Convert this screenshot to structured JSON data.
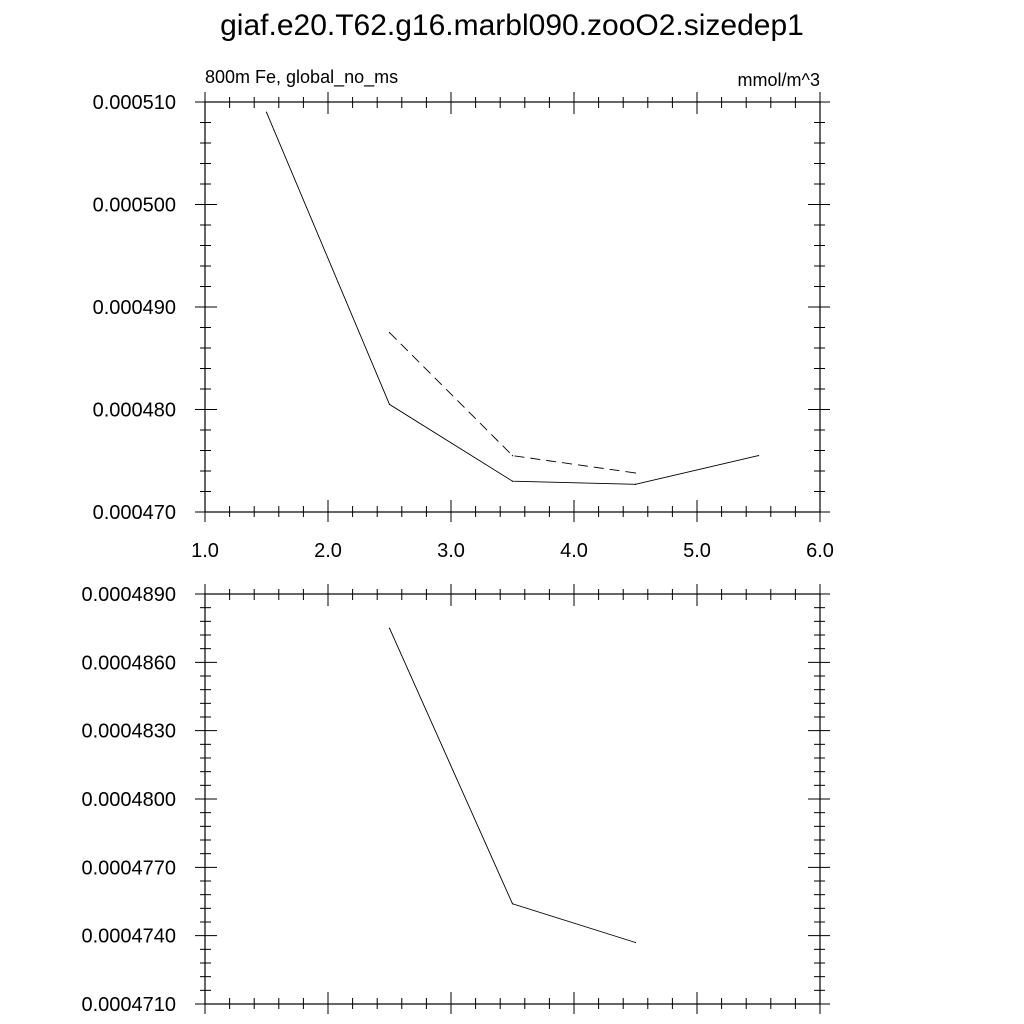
{
  "title": "giaf.e20.T62.g16.marbl090.zooO2.sizedep1",
  "chart_data": [
    {
      "type": "line",
      "subtitle_left": "800m Fe, global_no_ms",
      "subtitle_right": "mmol/m^3",
      "xlim": [
        1.0,
        6.0
      ],
      "ylim": [
        0.00047,
        0.00051
      ],
      "x_ticks": [
        1.0,
        2.0,
        3.0,
        4.0,
        5.0,
        6.0
      ],
      "x_tick_labels": [
        "1.0",
        "2.0",
        "3.0",
        "4.0",
        "5.0",
        "6.0"
      ],
      "y_ticks": [
        0.00047,
        0.00048,
        0.00049,
        0.0005,
        0.00051
      ],
      "y_tick_labels": [
        "0.000470",
        "0.000480",
        "0.000490",
        "0.000500",
        "0.000510"
      ],
      "grid": false,
      "series": [
        {
          "style": "solid",
          "color": "#000000",
          "x": [
            1.5,
            2.5,
            3.5,
            4.5,
            5.5
          ],
          "y": [
            0.000509,
            0.0004805,
            0.000473,
            0.0004727,
            0.0004755
          ]
        },
        {
          "style": "dashed",
          "color": "#000000",
          "x": [
            2.5,
            3.5,
            4.5
          ],
          "y": [
            0.0004875,
            0.0004755,
            0.0004738
          ]
        }
      ]
    },
    {
      "type": "line",
      "xlim": [
        1.0,
        6.0
      ],
      "ylim": [
        0.000471,
        0.000489
      ],
      "x_ticks": [
        1.0,
        2.0,
        3.0,
        4.0,
        5.0,
        6.0
      ],
      "x_tick_labels": [],
      "y_ticks": [
        0.000471,
        0.000474,
        0.000477,
        0.00048,
        0.000483,
        0.000486,
        0.000489
      ],
      "y_tick_labels": [
        "0.0004710",
        "0.0004740",
        "0.0004770",
        "0.0004800",
        "0.0004830",
        "0.0004860",
        "0.0004890"
      ],
      "grid": false,
      "series": [
        {
          "style": "solid",
          "color": "#000000",
          "x": [
            2.5,
            3.5,
            4.5
          ],
          "y": [
            0.0004875,
            0.0004754,
            0.0004737
          ]
        }
      ]
    }
  ]
}
